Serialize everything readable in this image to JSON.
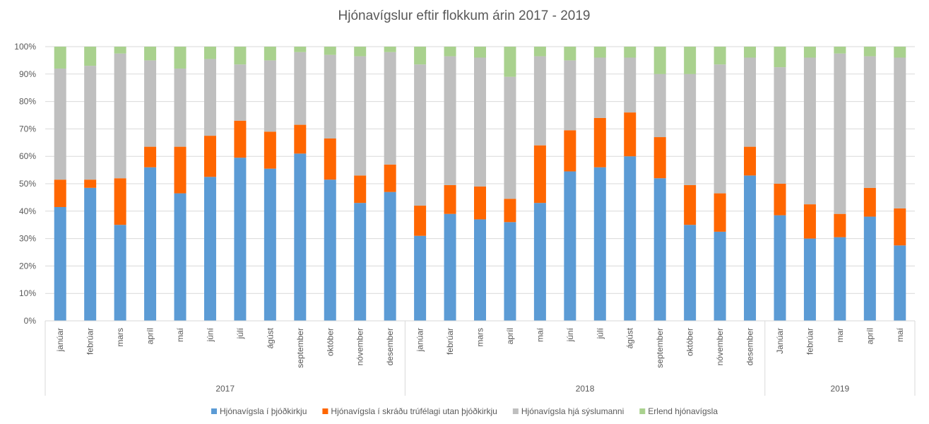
{
  "chart_data": {
    "type": "bar",
    "stacked": "percent",
    "title": "Hjónavígslur eftir flokkum árin 2017 - 2019",
    "xlabel": "",
    "ylabel": "",
    "ylim": [
      0,
      100
    ],
    "y_tick_labels": [
      "0%",
      "10%",
      "20%",
      "30%",
      "40%",
      "50%",
      "60%",
      "70%",
      "80%",
      "90%",
      "100%"
    ],
    "grid": true,
    "legend_position": "bottom",
    "categories": [
      "janúar",
      "febrúar",
      "mars",
      "apríl",
      "maí",
      "júní",
      "júlí",
      "ágúst",
      "september",
      "október",
      "nóvember",
      "desember",
      "janúar",
      "febrúar",
      "mars",
      "apríl",
      "maí",
      "júní",
      "júlí",
      "ágúst",
      "september",
      "október",
      "nóvember",
      "desember",
      "Janúar",
      "febrúar",
      "mar",
      "apríl",
      "maí"
    ],
    "groups": [
      {
        "label": "2017",
        "count": 12
      },
      {
        "label": "2018",
        "count": 12
      },
      {
        "label": "2019",
        "count": 5
      }
    ],
    "series": [
      {
        "name": "Hjónavígsla í þjóðkirkju",
        "color": "#5B9BD5",
        "values": [
          41.5,
          48.5,
          35,
          56,
          46.5,
          52.5,
          59.5,
          55.5,
          61,
          51.5,
          43,
          47,
          31,
          39,
          37,
          36,
          43,
          54.5,
          56,
          60,
          52,
          35,
          32.5,
          53,
          38.5,
          30,
          30.5,
          38,
          27.5
        ]
      },
      {
        "name": "Hjónavígsla í skráðu trúfélagi utan þjóðkirkju",
        "color": "#FF6600",
        "values": [
          10,
          3,
          17,
          7.5,
          17,
          15,
          13.5,
          13.5,
          10.5,
          15,
          10,
          10,
          11,
          10.5,
          12,
          8.5,
          21,
          15,
          18,
          16,
          15,
          14.5,
          14,
          10.5,
          11.5,
          12.5,
          8.5,
          10.5,
          13.5
        ]
      },
      {
        "name": "Hjónavígsla hjá sýslumanni",
        "color": "#BFBFBF",
        "values": [
          40.5,
          41.5,
          45.5,
          31.5,
          28.5,
          28,
          20.5,
          26,
          26.5,
          30.5,
          43.5,
          41,
          51.5,
          47,
          47,
          44.5,
          32.5,
          25.5,
          22,
          20,
          23,
          40.5,
          47,
          32.5,
          42.5,
          53.5,
          58.5,
          48,
          55
        ]
      },
      {
        "name": "Erlend hjónavígsla",
        "color": "#A9D18E",
        "values": [
          8,
          7,
          2.5,
          5,
          8,
          4.5,
          6.5,
          5,
          2,
          3,
          3.5,
          2,
          6.5,
          3.5,
          4,
          11,
          3.5,
          5,
          4,
          4,
          10,
          10,
          6.5,
          4,
          7.5,
          4,
          2.5,
          3.5,
          4
        ]
      }
    ]
  }
}
